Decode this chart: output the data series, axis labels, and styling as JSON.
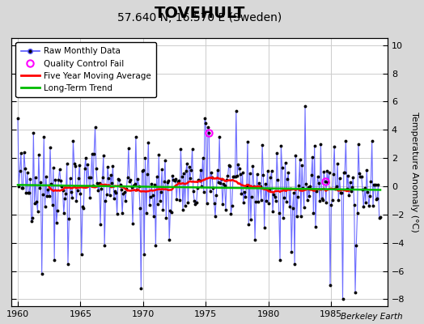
{
  "title": "TOVEHULT",
  "subtitle": "57.640 N, 16.570 E (Sweden)",
  "ylabel": "Temperature Anomaly (°C)",
  "xlim": [
    1959.5,
    1989.5
  ],
  "ylim": [
    -8.5,
    10.5
  ],
  "yticks": [
    -8,
    -6,
    -4,
    -2,
    0,
    2,
    4,
    6,
    8,
    10
  ],
  "xticks": [
    1960,
    1965,
    1970,
    1975,
    1980,
    1985
  ],
  "fig_bg_color": "#d8d8d8",
  "plot_bg_color": "#ffffff",
  "grid_color": "#cccccc",
  "raw_line_color": "#5555ff",
  "raw_dot_color": "#000000",
  "moving_avg_color": "#ff0000",
  "trend_color": "#00bb00",
  "qc_color": "#ff00ff",
  "title_fontsize": 14,
  "subtitle_fontsize": 10,
  "watermark": "Berkeley Earth",
  "legend_entries": [
    "Raw Monthly Data",
    "Quality Control Fail",
    "Five Year Moving Average",
    "Long-Term Trend"
  ],
  "start_year": 1960,
  "end_year": 1989,
  "random_seed": 42,
  "noise_std": 1.4,
  "trend_slope": -0.015,
  "moving_avg_window": 60
}
